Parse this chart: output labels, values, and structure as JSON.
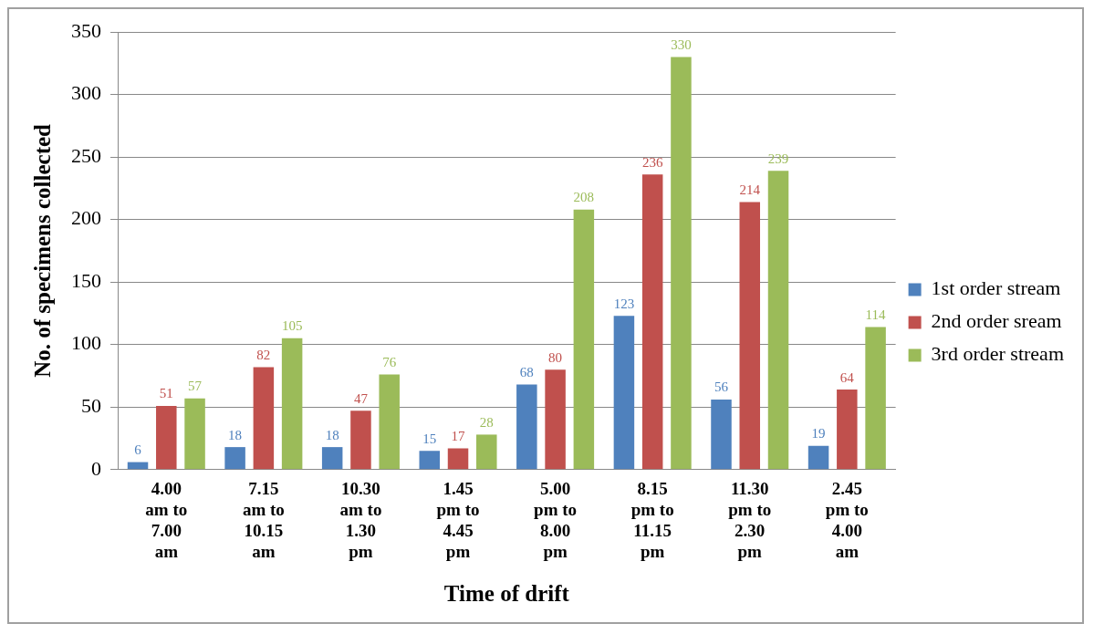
{
  "chart_data": {
    "type": "bar",
    "xlabel": "Time of drift",
    "ylabel": "No. of specimens collected",
    "categories": [
      "4.00 am to 7.00 am",
      "7.15 am to 10.15 am",
      "10.30 am to 1.30 pm",
      "1.45 pm to 4.45 pm",
      "5.00 pm to 8.00 pm",
      "8.15 pm to 11.15 pm",
      "11.30 pm to 2.30 pm",
      "2.45 pm to 4.00 am"
    ],
    "series": [
      {
        "name": "1st order stream",
        "color": "#4f81bd",
        "values": [
          6,
          18,
          18,
          15,
          68,
          123,
          56,
          19
        ]
      },
      {
        "name": "2nd order sream",
        "color": "#c0504d",
        "values": [
          51,
          82,
          47,
          17,
          80,
          236,
          214,
          64
        ]
      },
      {
        "name": "3rd order stream",
        "color": "#9bbb59",
        "values": [
          57,
          105,
          76,
          28,
          208,
          330,
          239,
          114
        ]
      }
    ],
    "ylim": [
      0,
      350
    ],
    "yticks": [
      0,
      50,
      100,
      150,
      200,
      250,
      300,
      350
    ],
    "grid": "y",
    "legend": "right",
    "data_labels": true
  }
}
